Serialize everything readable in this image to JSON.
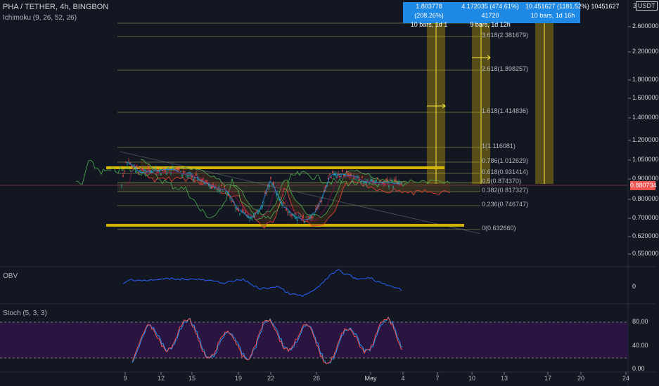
{
  "header": {
    "title": "PHA / TETHER, 4h, BINGBON",
    "indicator": "Ichimoku (9, 26, 52, 26)"
  },
  "currency": "USDT",
  "price_axis": {
    "labels": [
      "2.600000",
      "2.200000",
      "1.800000",
      "1.600000",
      "1.400000",
      "1.200000",
      "1.050000",
      "0.900000",
      "0.800000",
      "0.700000",
      "0.620000",
      "0.550000"
    ],
    "top_partial": "3",
    "current_price": "0.880734",
    "current_price_color": "#ef5350"
  },
  "fib_levels": [
    "3.618(2.381679)",
    "2.618(1.898257)",
    "1.618(1.414836)",
    "1(1.116081)",
    "0.786(1.012629)",
    "0.618(0.931414)",
    "0.5(0.874370)",
    "0.382(0.817327)",
    "0.236(0.746747)",
    "0(0.632660)"
  ],
  "measure_boxes": [
    {
      "line1": "1.803778 (208.26%)",
      "line2": "10 bars, 1d 1"
    },
    {
      "line1": "4.172035 (474.61%) 41720",
      "line2": "9 bars, 1d 12h"
    },
    {
      "line1": "10.451627 (1181.52%) 10451627",
      "line2": "10 bars, 1d 16h"
    }
  ],
  "obv": {
    "label": "OBV",
    "axis_value": "0"
  },
  "stoch": {
    "label": "Stoch (5, 3, 3)",
    "axis_labels": [
      "80.00",
      "40.00",
      "0.00"
    ],
    "band_color": "#2a1540"
  },
  "date_axis": [
    "9",
    "12",
    "15",
    "19",
    "22",
    "26",
    "May",
    "4",
    "7",
    "10",
    "13",
    "17",
    "20",
    "24"
  ],
  "colors": {
    "background": "#131722",
    "fib_line": "#a3a35a",
    "highlight": "#d4b106",
    "obv_line": "#2962ff",
    "stoch_k": "#2196f3",
    "stoch_d": "#ef5350",
    "ichimoku_green": "#4caf50",
    "ichimoku_red": "#f44336"
  },
  "chart_data": [
    {
      "type": "line",
      "title": "PHA / TETHER, 4h, BINGBON",
      "ylabel": "USDT",
      "yscale": "log",
      "fib_retracement": [
        {
          "level": 3.618,
          "price": 2.381679
        },
        {
          "level": 2.618,
          "price": 1.898257
        },
        {
          "level": 1.618,
          "price": 1.414836
        },
        {
          "level": 1,
          "price": 1.116081
        },
        {
          "level": 0.786,
          "price": 1.012629
        },
        {
          "level": 0.618,
          "price": 0.931414
        },
        {
          "level": 0.5,
          "price": 0.87437
        },
        {
          "level": 0.382,
          "price": 0.817327
        },
        {
          "level": 0.236,
          "price": 0.746747
        },
        {
          "level": 0,
          "price": 0.63266
        }
      ],
      "last_price": 0.880734
    },
    {
      "type": "line",
      "title": "OBV"
    },
    {
      "type": "line",
      "title": "Stoch (5, 3, 3)",
      "ylim": [
        0,
        100
      ]
    }
  ]
}
